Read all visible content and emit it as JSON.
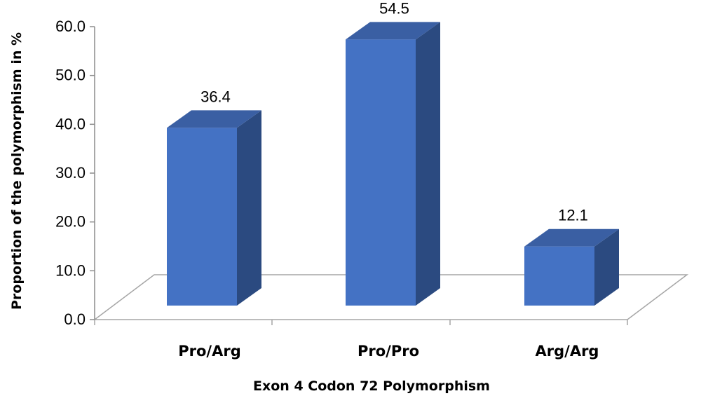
{
  "chart_data": {
    "type": "bar",
    "style": "3d-column",
    "categories": [
      "Pro/Arg",
      "Pro/Pro",
      "Arg/Arg"
    ],
    "values": [
      36.4,
      54.5,
      12.1
    ],
    "data_labels": [
      "36.4",
      "54.5",
      "12.1"
    ],
    "title": "",
    "xlabel": "Exon 4 Codon 72 Polymorphism",
    "ylabel": "Proportion of the polymorphism in %",
    "ylim": [
      0,
      60
    ],
    "yticks": [
      "0.0",
      "10.0",
      "20.0",
      "30.0",
      "40.0",
      "50.0",
      "60.0"
    ],
    "grid": false,
    "legend": "none",
    "colors": {
      "bar_front": "#4472C4",
      "bar_side": "#2B4A80",
      "bar_top": "#3A5FA3",
      "floor_line": "#A6A6A6",
      "axis_line": "#8C8C8C",
      "text": "#000000"
    }
  }
}
